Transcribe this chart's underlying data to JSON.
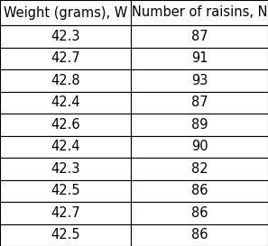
{
  "col1_header": "Weight (grams), W",
  "col2_header": "Number of raisins, N",
  "weights": [
    "42.3",
    "42.7",
    "42.8",
    "42.4",
    "42.6",
    "42.4",
    "42.3",
    "42.5",
    "42.7",
    "42.5"
  ],
  "raisins": [
    "87",
    "91",
    "93",
    "87",
    "89",
    "90",
    "82",
    "86",
    "86",
    "86"
  ],
  "bg_color": "#ffffff",
  "border_color": "#000000",
  "header_fontsize": 10.5,
  "data_fontsize": 10.5,
  "figsize": [
    2.97,
    2.73
  ],
  "dpi": 100
}
